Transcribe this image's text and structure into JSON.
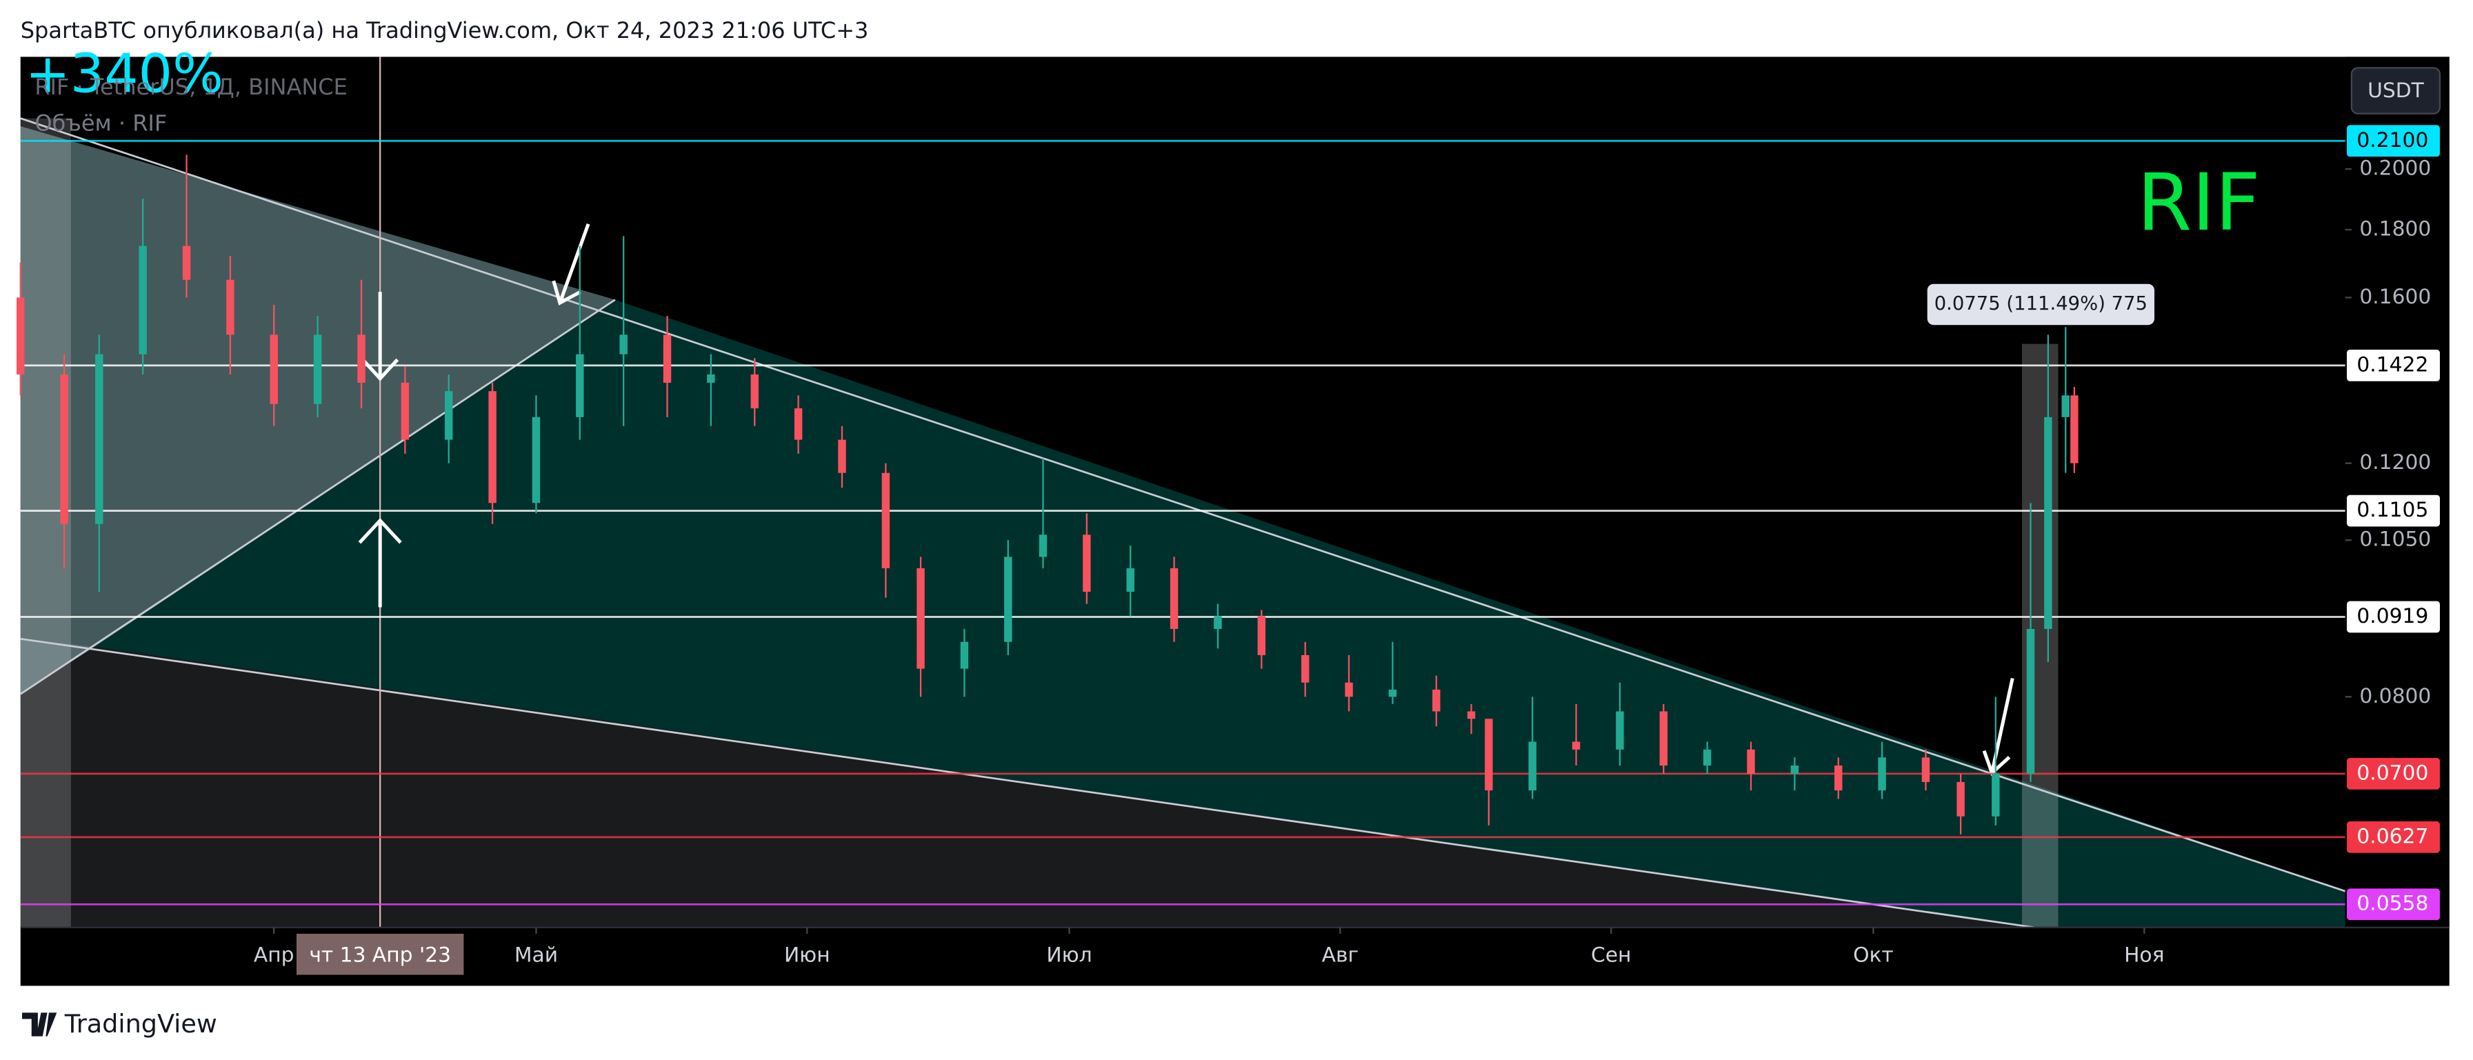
{
  "header": "SpartaBTC опубликовал(а) на TradingView.com, Окт 24, 2023 21:06 UTC+3",
  "change_label": "+340%",
  "symbol_line": "RIF · TetherUS, 1Д, BINANCE",
  "volume_line": "Объём · RIF",
  "currency_button": "USDT",
  "symbol_badge": "RIF",
  "measure_label": "0.0775 (111.49%) 775",
  "crosshair_label": "чт 13 Апр '23",
  "footer_brand": "TradingView",
  "chart_data": {
    "type": "candlestick",
    "log_scale": true,
    "up_color": "#22ab94",
    "down_color": "#f7525f",
    "x": [
      "2023-03-03",
      "2023-03-08",
      "2023-03-12",
      "2023-03-17",
      "2023-03-22",
      "2023-03-27",
      "2023-04-01",
      "2023-04-06",
      "2023-04-11",
      "2023-04-16",
      "2023-04-21",
      "2023-04-26",
      "2023-05-01",
      "2023-05-06",
      "2023-05-11",
      "2023-05-16",
      "2023-05-21",
      "2023-05-26",
      "2023-05-31",
      "2023-06-05",
      "2023-06-10",
      "2023-06-14",
      "2023-06-19",
      "2023-06-24",
      "2023-06-28",
      "2023-07-03",
      "2023-07-08",
      "2023-07-13",
      "2023-07-18",
      "2023-07-23",
      "2023-07-28",
      "2023-08-02",
      "2023-08-07",
      "2023-08-12",
      "2023-08-16",
      "2023-08-18",
      "2023-08-23",
      "2023-08-28",
      "2023-09-02",
      "2023-09-07",
      "2023-09-12",
      "2023-09-17",
      "2023-09-22",
      "2023-09-27",
      "2023-10-02",
      "2023-10-07",
      "2023-10-11",
      "2023-10-15",
      "2023-10-19",
      "2023-10-21",
      "2023-10-23",
      "2023-10-24"
    ],
    "open": [
      0.16,
      0.14,
      0.108,
      0.145,
      0.175,
      0.165,
      0.15,
      0.133,
      0.15,
      0.138,
      0.125,
      0.136,
      0.112,
      0.13,
      0.145,
      0.15,
      0.138,
      0.14,
      0.132,
      0.125,
      0.118,
      0.1,
      0.084,
      0.088,
      0.102,
      0.106,
      0.096,
      0.1,
      0.09,
      0.092,
      0.086,
      0.082,
      0.08,
      0.081,
      0.078,
      0.077,
      0.068,
      0.074,
      0.073,
      0.078,
      0.071,
      0.073,
      0.07,
      0.071,
      0.068,
      0.072,
      0.069,
      0.065,
      0.07,
      0.09,
      0.13,
      0.135
    ],
    "high": [
      0.17,
      0.145,
      0.15,
      0.19,
      0.205,
      0.172,
      0.158,
      0.155,
      0.165,
      0.142,
      0.14,
      0.138,
      0.135,
      0.175,
      0.178,
      0.155,
      0.145,
      0.144,
      0.135,
      0.128,
      0.12,
      0.102,
      0.09,
      0.105,
      0.121,
      0.11,
      0.104,
      0.102,
      0.094,
      0.093,
      0.088,
      0.086,
      0.088,
      0.083,
      0.079,
      0.077,
      0.08,
      0.079,
      0.082,
      0.079,
      0.074,
      0.074,
      0.072,
      0.072,
      0.074,
      0.073,
      0.07,
      0.08,
      0.112,
      0.15,
      0.152,
      0.137
    ],
    "low": [
      0.135,
      0.1,
      0.096,
      0.14,
      0.16,
      0.14,
      0.128,
      0.13,
      0.132,
      0.122,
      0.12,
      0.108,
      0.11,
      0.125,
      0.128,
      0.13,
      0.128,
      0.128,
      0.122,
      0.115,
      0.095,
      0.08,
      0.08,
      0.086,
      0.1,
      0.094,
      0.092,
      0.088,
      0.087,
      0.084,
      0.08,
      0.078,
      0.079,
      0.076,
      0.075,
      0.064,
      0.067,
      0.071,
      0.071,
      0.07,
      0.07,
      0.068,
      0.068,
      0.067,
      0.067,
      0.068,
      0.063,
      0.064,
      0.069,
      0.085,
      0.118,
      0.118
    ],
    "close": [
      0.14,
      0.108,
      0.145,
      0.175,
      0.165,
      0.15,
      0.133,
      0.15,
      0.138,
      0.125,
      0.136,
      0.112,
      0.13,
      0.145,
      0.15,
      0.138,
      0.14,
      0.132,
      0.125,
      0.118,
      0.1,
      0.084,
      0.088,
      0.102,
      0.106,
      0.096,
      0.1,
      0.09,
      0.092,
      0.086,
      0.082,
      0.08,
      0.081,
      0.078,
      0.077,
      0.068,
      0.074,
      0.073,
      0.078,
      0.071,
      0.073,
      0.07,
      0.071,
      0.068,
      0.072,
      0.069,
      0.065,
      0.07,
      0.09,
      0.13,
      0.135,
      0.12
    ],
    "xlim": [
      "2023-03-03",
      "2023-11-24"
    ],
    "xticks": [
      {
        "value": "2023-04-01",
        "label": "Апр"
      },
      {
        "value": "2023-05-01",
        "label": "Май"
      },
      {
        "value": "2023-06-01",
        "label": "Июн"
      },
      {
        "value": "2023-07-01",
        "label": "Июл"
      },
      {
        "value": "2023-08-01",
        "label": "Авг"
      },
      {
        "value": "2023-09-01",
        "label": "Сен"
      },
      {
        "value": "2023-10-01",
        "label": "Окт"
      },
      {
        "value": "2023-11-01",
        "label": "Ноя"
      }
    ],
    "ylim": [
      0.0536,
      0.243
    ],
    "yticks": [
      {
        "value": 0.2,
        "label": "0.2000"
      },
      {
        "value": 0.18,
        "label": "0.1800"
      },
      {
        "value": 0.16,
        "label": "0.1600"
      },
      {
        "value": 0.12,
        "label": "0.1200"
      },
      {
        "value": 0.105,
        "label": "0.1050"
      },
      {
        "value": 0.08,
        "label": "0.0800"
      }
    ],
    "levels": [
      {
        "value": 0.21,
        "label": "0.2100",
        "color": "#00e5ff"
      },
      {
        "value": 0.1422,
        "label": "0.1422",
        "color": "#ffffff"
      },
      {
        "value": 0.1105,
        "label": "0.1105",
        "color": "#ffffff"
      },
      {
        "value": 0.0919,
        "label": "0.0919",
        "color": "#ffffff"
      },
      {
        "value": 0.07,
        "label": "0.0700",
        "color": "#f23645"
      },
      {
        "value": 0.0627,
        "label": "0.0627",
        "color": "#f23645"
      },
      {
        "value": 0.0558,
        "label": "0.0558",
        "color": "#e040fb"
      }
    ]
  }
}
